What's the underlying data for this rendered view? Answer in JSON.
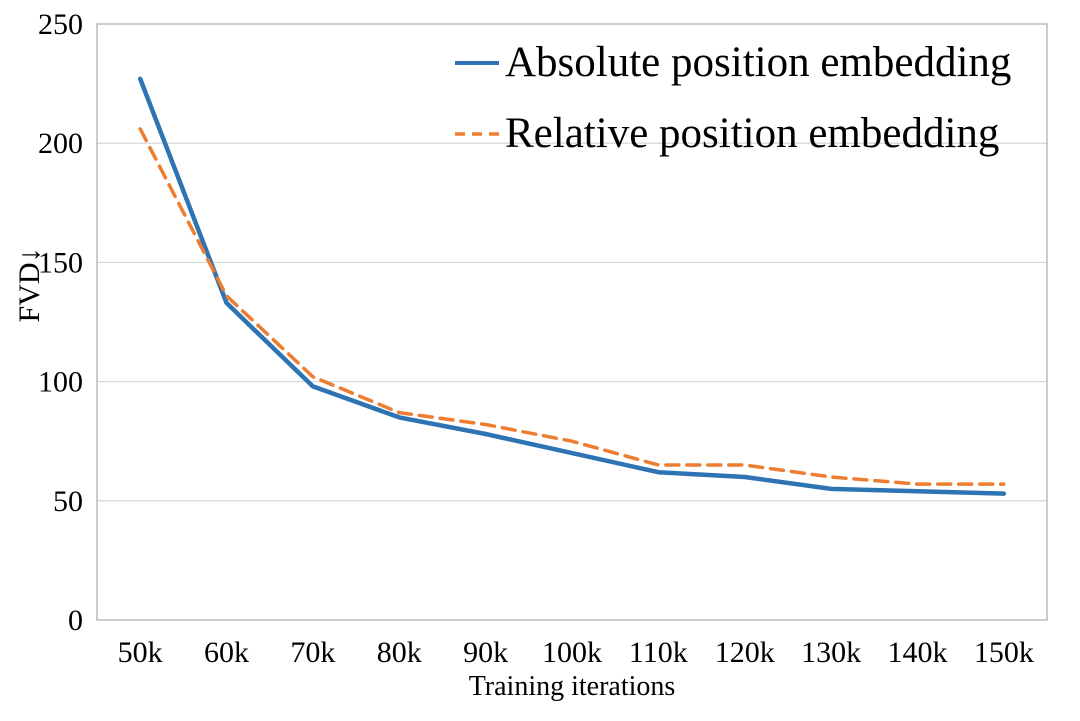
{
  "chart_data": {
    "type": "line",
    "title": "",
    "xlabel": "Training iterations",
    "ylabel": "FVD↓",
    "categories": [
      "50k",
      "60k",
      "70k",
      "80k",
      "90k",
      "100k",
      "110k",
      "120k",
      "130k",
      "140k",
      "150k"
    ],
    "series": [
      {
        "name": "Absolute position embedding",
        "values": [
          227,
          133,
          98,
          85,
          78,
          70,
          62,
          60,
          55,
          54,
          53
        ],
        "color": "#2E74B5",
        "line_style": "solid"
      },
      {
        "name": "Relative position embedding",
        "values": [
          206,
          136,
          102,
          87,
          82,
          75,
          65,
          65,
          60,
          57,
          57
        ],
        "color": "#ED7D31",
        "line_style": "dashed"
      }
    ],
    "ylim": [
      0,
      250
    ],
    "ytick_step": 50,
    "yticks": [
      0,
      50,
      100,
      150,
      200,
      250
    ],
    "grid": true,
    "gridline_color": "#D9D9D9",
    "plot_border_color": "#BFBFBF",
    "legend_position": "top-right-inside"
  }
}
